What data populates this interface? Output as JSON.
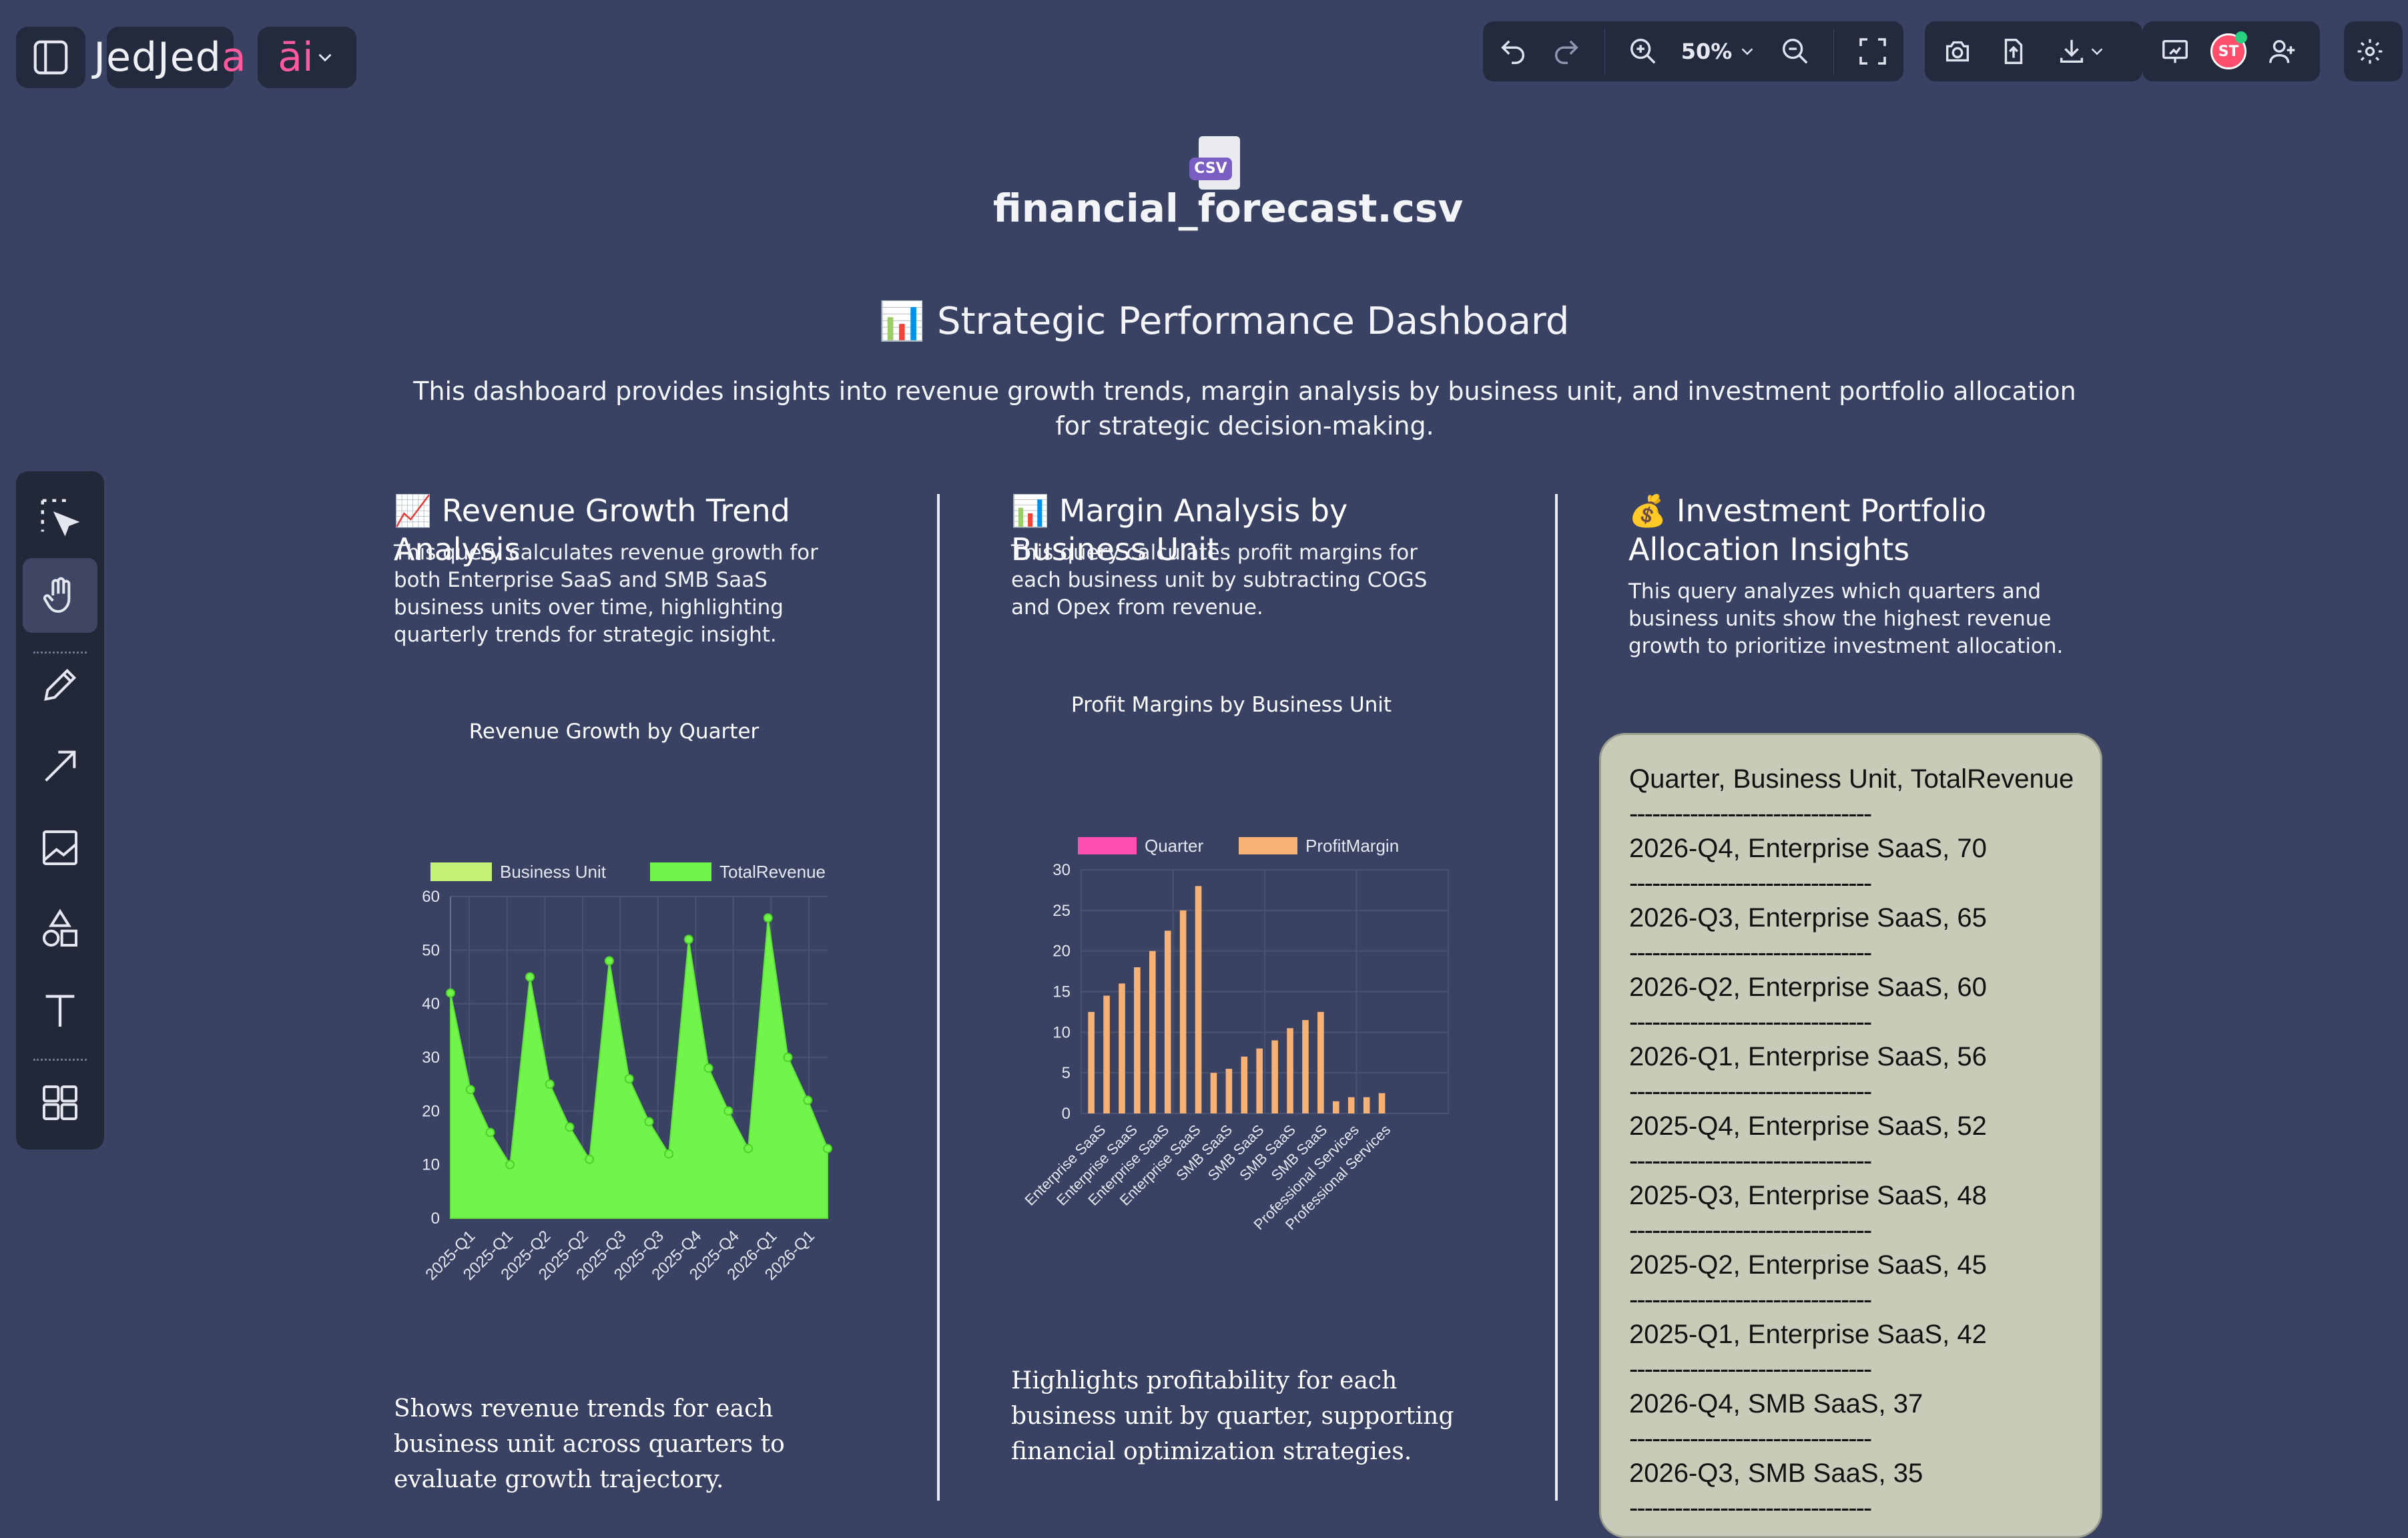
{
  "app": {
    "logo_text": "Jeda",
    "logo_accent": "a",
    "ai_label": "āi"
  },
  "topbar": {
    "zoom_label": "50%",
    "avatar_initials": "ST"
  },
  "file": {
    "badge": "CSV",
    "name": "financial_forecast.csv"
  },
  "dashboard": {
    "title": "📊 Strategic Performance Dashboard",
    "description": "This dashboard provides insights into revenue growth trends, margin analysis by business unit, and investment portfolio allocation for strategic decision-making."
  },
  "col1": {
    "title": "📈 Revenue Growth Trend Analysis",
    "desc": "This query calculates revenue growth for both Enterprise SaaS and SMB SaaS business units over time, highlighting quarterly trends for strategic insight.",
    "chart_title": "Revenue Growth by Quarter",
    "note": "Shows revenue trends for each business unit across quarters to evaluate growth trajectory."
  },
  "col2": {
    "title": "📊 Margin Analysis by Business Unit",
    "desc": "This query calculates profit margins for each business unit by subtracting COGS and Opex from revenue.",
    "chart_title": "Profit Margins by Business Unit",
    "note": "Highlights profitability for each business unit by quarter, supporting financial optimization strategies."
  },
  "col3": {
    "title": "💰 Investment Portfolio Allocation Insights",
    "desc": "This query analyzes which quarters and business units show the highest revenue growth to prioritize investment allocation.",
    "table_header": "Quarter, Business Unit, TotalRevenue",
    "divider": "--------------------------------",
    "rows": [
      "2026-Q4, Enterprise SaaS, 70",
      "2026-Q3, Enterprise SaaS, 65",
      "2026-Q2, Enterprise SaaS, 60",
      "2026-Q1, Enterprise SaaS, 56",
      "2025-Q4, Enterprise SaaS, 52",
      "2025-Q3, Enterprise SaaS, 48",
      "2025-Q2, Enterprise SaaS, 45",
      "2025-Q1, Enterprise SaaS, 42",
      "2026-Q4, SMB SaaS, 37",
      "2026-Q3, SMB SaaS, 35"
    ]
  },
  "colors": {
    "background": "#394262",
    "area_fill": "#72f54a",
    "area_legend": "#c3f276",
    "bar_orange": "#f7b174",
    "bar_pink": "#ff4fb5",
    "accent_pink": "#ff5aa0"
  },
  "chart_data": [
    {
      "type": "area",
      "title": "Revenue Growth by Quarter",
      "legend": [
        "Business Unit",
        "TotalRevenue"
      ],
      "legend_position": "top",
      "grid": true,
      "ylim": [
        0,
        60
      ],
      "yticks": [
        0,
        10,
        20,
        30,
        40,
        50,
        60
      ],
      "x_tick_labels": [
        "2025-Q1",
        "2025-Q1",
        "2025-Q2",
        "2025-Q2",
        "2025-Q3",
        "2025-Q3",
        "2025-Q4",
        "2025-Q4",
        "2026-Q1",
        "2026-Q1"
      ],
      "series": [
        {
          "name": "TotalRevenue",
          "values": [
            42,
            24,
            16,
            10,
            45,
            25,
            17,
            11,
            48,
            26,
            18,
            12,
            52,
            28,
            20,
            13,
            56,
            30,
            22,
            13
          ]
        }
      ]
    },
    {
      "type": "bar",
      "title": "Profit Margins by Business Unit",
      "legend": [
        "Quarter",
        "ProfitMargin"
      ],
      "legend_position": "top",
      "grid": true,
      "ylim": [
        0,
        30
      ],
      "yticks": [
        0,
        5,
        10,
        15,
        20,
        25,
        30
      ],
      "x_tick_labels": [
        "Enterprise SaaS",
        "Enterprise SaaS",
        "Enterprise SaaS",
        "Enterprise SaaS",
        "SMB SaaS",
        "SMB SaaS",
        "SMB SaaS",
        "SMB SaaS",
        "Professional Services",
        "Professional Services"
      ],
      "series": [
        {
          "name": "Quarter",
          "values": [
            0,
            0,
            0,
            0,
            0,
            0,
            0,
            0,
            0,
            0,
            0,
            0,
            0,
            0,
            0,
            0,
            0,
            0,
            0,
            0,
            0,
            0,
            0,
            0
          ]
        },
        {
          "name": "ProfitMargin",
          "values": [
            12.5,
            14.5,
            16,
            18,
            20,
            22.5,
            25,
            28,
            5,
            5.5,
            7,
            8,
            9,
            10.5,
            11.5,
            12.5,
            1.5,
            2,
            2,
            2.5,
            0,
            0,
            0,
            0
          ]
        }
      ]
    }
  ]
}
